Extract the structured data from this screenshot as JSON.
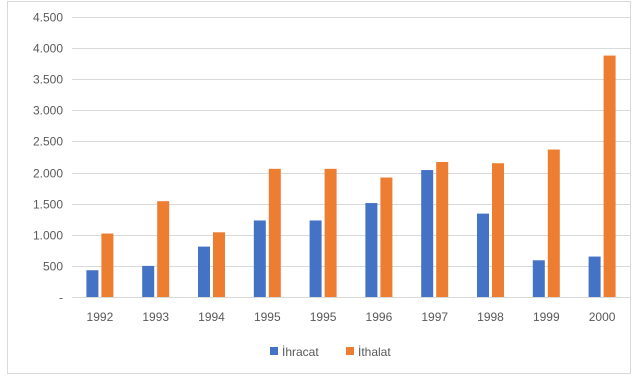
{
  "chart_data": {
    "type": "bar",
    "title": "",
    "xlabel": "",
    "ylabel": "",
    "categories": [
      "1992",
      "1993",
      "1994",
      "1995",
      "1995",
      "1996",
      "1997",
      "1998",
      "1999",
      "2000"
    ],
    "series": [
      {
        "name": "İhracat",
        "color": "#4472c4",
        "values": [
          430,
          500,
          810,
          1230,
          1230,
          1510,
          2040,
          1340,
          590,
          650
        ]
      },
      {
        "name": "İthalat",
        "color": "#ed7d31",
        "values": [
          1020,
          1540,
          1040,
          2060,
          2060,
          1920,
          2170,
          2150,
          2370,
          3880
        ]
      }
    ],
    "ylim": [
      0,
      4500
    ],
    "y_ticks": [
      {
        "value": 0,
        "label": "-"
      },
      {
        "value": 500,
        "label": "500"
      },
      {
        "value": 1000,
        "label": "1.000"
      },
      {
        "value": 1500,
        "label": "1.500"
      },
      {
        "value": 2000,
        "label": "2.000"
      },
      {
        "value": 2500,
        "label": "2.500"
      },
      {
        "value": 3000,
        "label": "3.000"
      },
      {
        "value": 3500,
        "label": "3.500"
      },
      {
        "value": 4000,
        "label": "4.000"
      },
      {
        "value": 4500,
        "label": "4.500"
      }
    ],
    "grid": true,
    "gridline_color": "#d9d9d9",
    "legend_position": "bottom"
  }
}
